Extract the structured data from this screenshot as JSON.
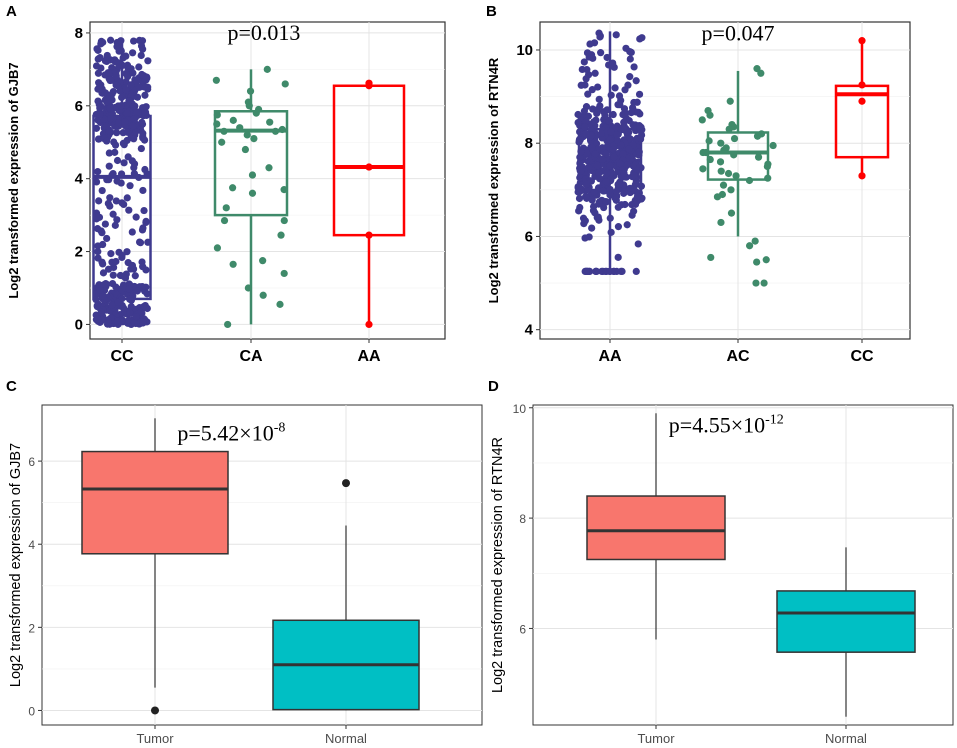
{
  "chart_data": [
    {
      "id": "A",
      "panel_label": "A",
      "type": "box-jitter",
      "style": "bold",
      "ylabel": "Log2 transformed expression of GJB7",
      "ylim": [
        -0.4,
        8.3
      ],
      "yticks": [
        0,
        2,
        4,
        6,
        8
      ],
      "annotation": {
        "prefix": "p=0.013",
        "sup": "",
        "x": 2.1,
        "y": 7.8
      },
      "categories": [
        "CC",
        "CA",
        "AA"
      ],
      "colors": [
        "#3f3a8f",
        "#3f8a6a",
        "#ff0000"
      ],
      "boxes": [
        {
          "q1": 0.7,
          "median": 4.05,
          "q3": 5.72,
          "whisker_low": 0.0,
          "whisker_high": 7.82
        },
        {
          "q1": 3.0,
          "median": 5.32,
          "q3": 5.85,
          "whisker_low": 0.0,
          "whisker_high": 7.0
        },
        {
          "q1": 2.45,
          "median": 4.32,
          "q3": 6.55,
          "whisker_low": 0.0,
          "whisker_high": 6.62
        }
      ],
      "points": [
        {
          "n": 520
        },
        {
          "values": [
            7.0,
            6.7,
            6.6,
            6.4,
            6.1,
            6.0,
            5.9,
            5.8,
            5.75,
            5.6,
            5.55,
            5.5,
            5.4,
            5.35,
            5.3,
            5.3,
            5.2,
            5.1,
            5.0,
            4.8,
            4.3,
            4.1,
            3.75,
            3.7,
            3.6,
            3.2,
            2.85,
            2.85,
            2.45,
            2.1,
            1.75,
            1.65,
            1.4,
            1.0,
            0.8,
            0.55,
            0.0
          ]
        },
        {
          "values": [
            6.62,
            6.55,
            4.32,
            2.45,
            0.0
          ]
        }
      ]
    },
    {
      "id": "B",
      "panel_label": "B",
      "type": "box-jitter",
      "style": "bold",
      "ylabel": "Log2 transformed expression of RTN4R",
      "ylim": [
        3.8,
        10.6
      ],
      "yticks": [
        4,
        6,
        8,
        10
      ],
      "annotation": {
        "prefix": "p=0.047",
        "sup": "",
        "x": 2.0,
        "y": 10.2
      },
      "categories": [
        "AA",
        "AC",
        "CC"
      ],
      "colors": [
        "#3f3a8f",
        "#3f8a6a",
        "#ff0000"
      ],
      "boxes": [
        {
          "q1": 6.98,
          "median": 7.62,
          "q3": 8.3,
          "whisker_low": 5.25,
          "whisker_high": 10.4
        },
        {
          "q1": 7.22,
          "median": 7.8,
          "q3": 8.23,
          "whisker_low": 6.0,
          "whisker_high": 9.55
        },
        {
          "q1": 7.7,
          "median": 9.05,
          "q3": 9.23,
          "whisker_low": 7.3,
          "whisker_high": 10.2
        }
      ],
      "points": [
        {
          "n": 480
        },
        {
          "values": [
            9.6,
            9.5,
            8.9,
            8.7,
            8.6,
            8.5,
            8.4,
            8.35,
            8.3,
            8.2,
            8.15,
            8.1,
            8.05,
            8.0,
            7.95,
            7.9,
            7.85,
            7.8,
            7.8,
            7.75,
            7.7,
            7.65,
            7.6,
            7.55,
            7.5,
            7.45,
            7.4,
            7.35,
            7.3,
            7.25,
            7.2,
            7.1,
            7.0,
            6.9,
            6.85,
            6.5,
            6.3,
            5.9,
            5.8,
            5.55,
            5.5,
            5.45,
            5.0,
            5.0
          ]
        },
        {
          "values": [
            10.2,
            9.25,
            8.9,
            7.3
          ]
        }
      ]
    },
    {
      "id": "C",
      "panel_label": "C",
      "type": "box",
      "style": "plain",
      "ylabel": "Log2 transformed expression of GJB7",
      "ylim": [
        -0.35,
        7.35
      ],
      "yticks": [
        0,
        2,
        4,
        6
      ],
      "annotation": {
        "prefix": "p=5.42×10",
        "sup": "-8",
        "x": 1.4,
        "y": 6.5
      },
      "categories": [
        "Tumor",
        "Normal"
      ],
      "fills": [
        "#f8766d",
        "#00bfc4"
      ],
      "boxes": [
        {
          "q1": 3.77,
          "median": 5.33,
          "q3": 6.23,
          "whisker_low": 0.55,
          "whisker_high": 7.03
        },
        {
          "q1": 0.02,
          "median": 1.1,
          "q3": 2.17,
          "whisker_low": 0.0,
          "whisker_high": 4.45
        }
      ],
      "outliers": [
        [
          0,
          0.0
        ],
        [
          1,
          5.47
        ]
      ]
    },
    {
      "id": "D",
      "panel_label": "D",
      "type": "box",
      "style": "plain",
      "ylabel": "Log2 transformed expression of RTN4R",
      "ylim": [
        4.25,
        10.05
      ],
      "yticks": [
        6,
        8,
        10
      ],
      "annotation": {
        "prefix": "p=4.55×10",
        "sup": "-12",
        "x": 1.37,
        "y": 9.55
      },
      "categories": [
        "Tumor",
        "Normal"
      ],
      "fills": [
        "#f8766d",
        "#00bfc4"
      ],
      "boxes": [
        {
          "q1": 7.25,
          "median": 7.77,
          "q3": 8.4,
          "whisker_low": 5.8,
          "whisker_high": 9.9
        },
        {
          "q1": 5.57,
          "median": 6.28,
          "q3": 6.68,
          "whisker_low": 4.4,
          "whisker_high": 7.47
        }
      ],
      "outliers": []
    }
  ]
}
